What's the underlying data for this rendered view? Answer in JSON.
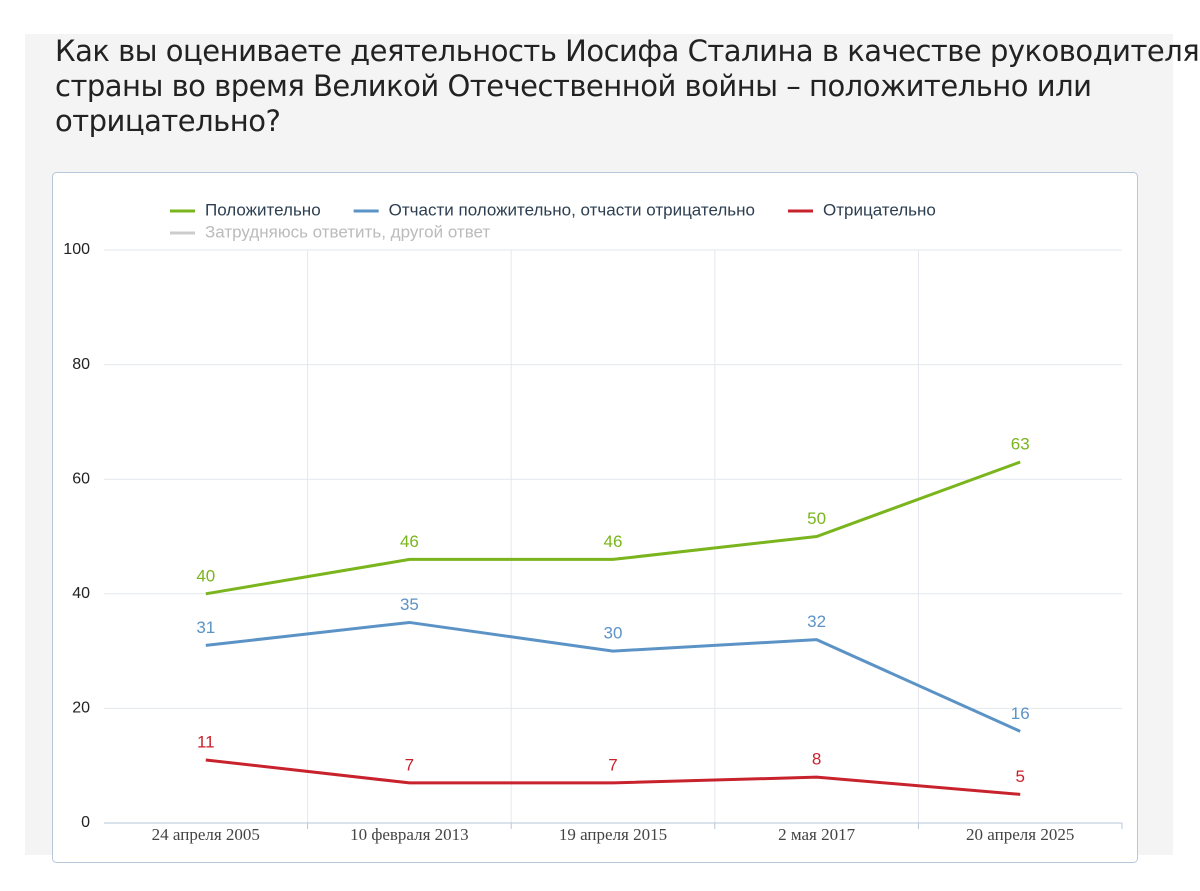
{
  "chart_data": {
    "type": "line",
    "title_lines": [
      "Как вы оцениваете деятельность Иосифа Сталина в качестве руководителя",
      "страны во время Великой Отечественной войны – положительно или",
      "отрицательно?"
    ],
    "categories": [
      "24 апреля 2005",
      "10 февраля 2013",
      "19 апреля 2015",
      "2 мая 2017",
      "20 апреля 2025"
    ],
    "series": [
      {
        "name": "Положительно",
        "color": "#7ab51d",
        "values": [
          40,
          46,
          46,
          50,
          63
        ]
      },
      {
        "name": "Отчасти положительно, отчасти отрицательно",
        "color": "#5b93c6",
        "values": [
          31,
          35,
          30,
          32,
          16
        ]
      },
      {
        "name": "Отрицательно",
        "color": "#c8222d",
        "values": [
          11,
          7,
          7,
          8,
          5
        ]
      },
      {
        "name": "Затрудняюсь ответить, другой ответ",
        "color": "#cccccc",
        "visible": false
      }
    ],
    "ylim": [
      0,
      100
    ],
    "yticks": [
      0,
      20,
      40,
      60,
      80,
      100
    ],
    "grid": true,
    "data_labels": true
  }
}
